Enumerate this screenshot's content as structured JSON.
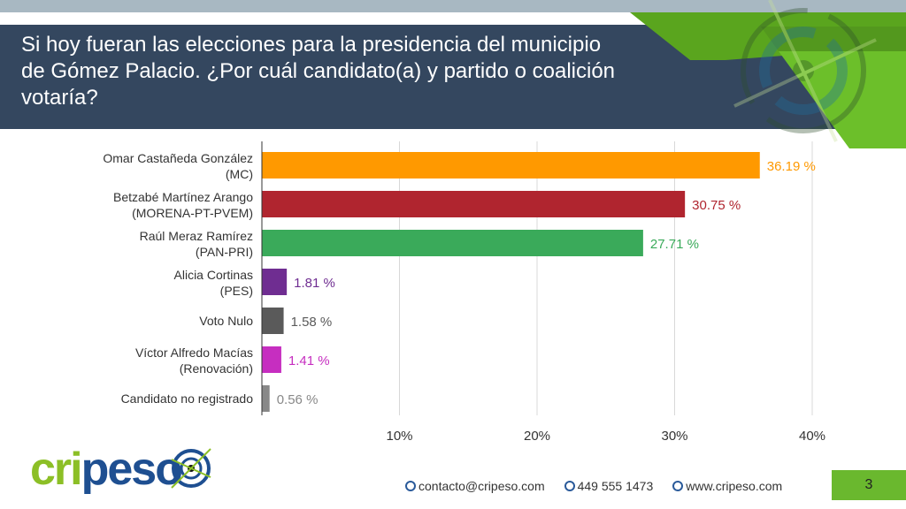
{
  "header": {
    "title": "Si hoy fueran las elecciones para la presidencia del municipio de Gómez Palacio. ¿Por cuál candidato(a) y partido o coalición votaría?"
  },
  "chart_data": {
    "type": "bar",
    "orientation": "horizontal",
    "categories": [
      [
        "Omar Castañeda González",
        "(MC)"
      ],
      [
        "Betzabé Martínez Arango",
        "(MORENA-PT-PVEM)"
      ],
      [
        "Raúl Meraz Ramírez",
        "(PAN-PRI)"
      ],
      [
        "Alicia Cortinas",
        "(PES)"
      ],
      [
        "Voto Nulo"
      ],
      [
        "Víctor Alfredo Macías",
        "(Renovación)"
      ],
      [
        "Candidato no registrado"
      ]
    ],
    "values": [
      36.19,
      30.75,
      27.71,
      1.81,
      1.58,
      1.41,
      0.56
    ],
    "value_labels": [
      "36.19 %",
      "30.75 %",
      "27.71 %",
      "1.81 %",
      "1.58 %",
      "1.41 %",
      "0.56 %"
    ],
    "colors": [
      "#ff9900",
      "#b0252f",
      "#3aaa5a",
      "#6f2d91",
      "#5a5a5a",
      "#c62ec0",
      "#888888"
    ],
    "xlim": [
      0,
      42
    ],
    "xticks": [
      10,
      20,
      30,
      40
    ],
    "xtick_labels": [
      "10%",
      "20%",
      "30%",
      "40%"
    ],
    "grid": true
  },
  "logo": {
    "text": "cripeso"
  },
  "footer": {
    "email": "contacto@cripeso.com",
    "phone": "449 555 1473",
    "web": "www.cripeso.com"
  },
  "page_number": "3"
}
